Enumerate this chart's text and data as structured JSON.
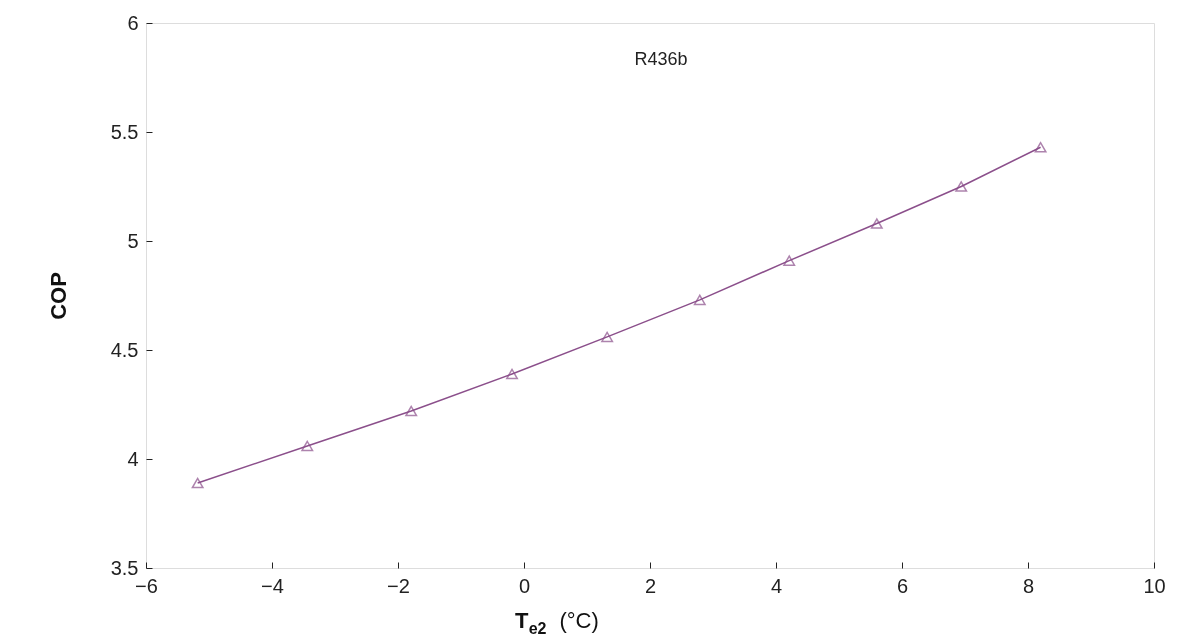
{
  "chart_data": {
    "type": "line",
    "xlabel": "T$_{e2}$ (°C)",
    "ylabel": "COP",
    "annotations": [
      "R436b"
    ],
    "x": [
      -5.18,
      -3.44,
      -1.79,
      -0.19,
      1.32,
      2.79,
      4.21,
      5.6,
      6.94,
      8.2
    ],
    "series": [
      {
        "color": "#8b4f8b",
        "values": [
          3.89,
          4.06,
          4.22,
          4.39,
          4.56,
          4.73,
          4.91,
          5.08,
          5.25,
          5.43
        ]
      }
    ],
    "xlim": [
      -6,
      10
    ],
    "xticks": [
      -6,
      -4,
      -2,
      0,
      2,
      4,
      6,
      8,
      10
    ],
    "ylim": [
      3.5,
      6
    ],
    "yticks": [
      3.5,
      4,
      4.5,
      5,
      5.5,
      6
    ],
    "marker": "triangle",
    "line_style": "solid",
    "grid": false
  }
}
